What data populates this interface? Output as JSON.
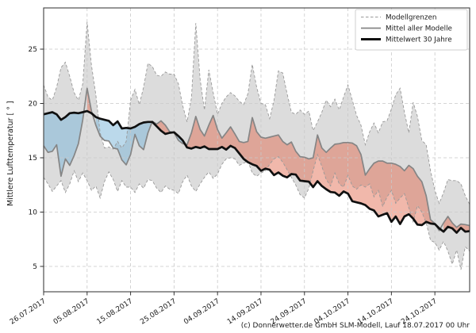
{
  "figure": {
    "footer": "(c) Donnerwetter.de GmbH SLM-Modell, Lauf 18.07.2017 00 Uhr"
  },
  "axes": {
    "y_label": "Mittlere Lufttemperatur [ ° ]",
    "y_ticks": [
      5,
      10,
      15,
      20,
      25
    ],
    "x_tick_days": [
      0,
      10,
      20,
      30,
      40,
      50,
      60,
      70,
      80,
      90
    ],
    "x_tick_labels": [
      "26.07.2017",
      "05.08.2017",
      "15.08.2017",
      "25.08.2017",
      "04.09.2017",
      "14.09.2017",
      "24.09.2017",
      "04.10.2017",
      "14.10.2017",
      "24.10.2017"
    ]
  },
  "legend": {
    "items": [
      {
        "label": "Modellgrenzen",
        "style": "dashed-gray"
      },
      {
        "label": "Mittel aller Modelle",
        "style": "solid-gray"
      },
      {
        "label": "Mittelwert 30 Jahre",
        "style": "solid-black-thick"
      }
    ]
  },
  "colors": {
    "band_fill": "#dcdcdc",
    "bounds_line": "#999999",
    "mean_line": "#858585",
    "climate_line": "#101010",
    "warm_fill": "rgba(224,98,68,0.45)",
    "cool_fill": "rgba(120,180,215,0.5)",
    "grid": "#c9c9c9"
  },
  "chart_data": {
    "type": "line",
    "title": "",
    "xlabel": "",
    "ylabel": "Mittlere Lufttemperatur [ ° ]",
    "x_unit": "Tage ab 26.07.2017 (1 Punkt pro Tag)",
    "x_start_date": "26.07.2017",
    "x_end_date": "01.11.2017",
    "ylim": [
      2.7,
      28.8
    ],
    "grid": true,
    "legend_position": "upper right",
    "fills": [
      {
        "name": "Spannweite aller Modelle (Modellgrenzen)",
        "color": "#dcdcdc"
      },
      {
        "name": "Modellmittel waermer als 30-jaehriges Mittel",
        "color": "rgba(224,98,68,0.45)"
      },
      {
        "name": "Modellmittel kaelter als 30-jaehriges Mittel",
        "color": "rgba(120,180,215,0.5)"
      }
    ],
    "series": [
      {
        "name": "Modellgrenzen (obere Grenze)",
        "style": "dashed",
        "values": [
          21.7,
          20.6,
          20.3,
          21.5,
          23.3,
          23.8,
          22.5,
          21.0,
          20.3,
          21.8,
          27.5,
          23.5,
          20.8,
          17.3,
          15.9,
          16.0,
          15.8,
          16.5,
          15.9,
          16.5,
          20.3,
          21.3,
          19.9,
          21.5,
          23.7,
          23.4,
          22.6,
          22.5,
          22.9,
          22.7,
          22.7,
          21.8,
          19.8,
          18.3,
          20.5,
          27.4,
          22.2,
          19.4,
          23.1,
          21.0,
          19.0,
          20.0,
          20.6,
          21.0,
          20.7,
          20.2,
          19.9,
          20.9,
          23.6,
          21.5,
          20.0,
          19.9,
          18.6,
          20.3,
          23.0,
          22.8,
          20.9,
          19.2,
          19.0,
          19.4,
          19.0,
          19.3,
          17.5,
          18.3,
          19.2,
          20.3,
          19.7,
          20.4,
          19.4,
          20.6,
          21.7,
          20.3,
          18.9,
          18.0,
          16.2,
          17.4,
          18.2,
          17.3,
          18.3,
          18.4,
          19.5,
          20.8,
          21.4,
          19.2,
          17.3,
          20.1,
          18.8,
          16.6,
          16.2,
          13.8,
          12.0,
          10.8,
          11.8,
          13.0,
          12.9,
          12.9,
          12.6,
          11.5,
          10.7
        ]
      },
      {
        "name": "Modellgrenzen (untere Grenze)",
        "style": "dashed",
        "values": [
          13.2,
          12.6,
          11.9,
          12.4,
          12.9,
          11.8,
          12.6,
          13.8,
          12.8,
          13.6,
          12.9,
          12.0,
          12.4,
          11.3,
          12.8,
          13.7,
          13.0,
          11.9,
          12.9,
          12.3,
          12.3,
          11.8,
          12.6,
          12.2,
          13.0,
          12.9,
          12.2,
          11.8,
          12.4,
          12.1,
          12.0,
          11.7,
          12.8,
          13.4,
          12.4,
          11.9,
          12.6,
          13.2,
          13.7,
          13.1,
          13.5,
          14.4,
          14.9,
          15.0,
          14.9,
          14.3,
          14.5,
          14.7,
          13.6,
          13.3,
          13.6,
          13.8,
          14.4,
          14.9,
          15.1,
          14.6,
          13.9,
          13.2,
          12.5,
          11.6,
          11.3,
          12.2,
          13.8,
          15.3,
          14.2,
          13.0,
          12.4,
          13.6,
          12.6,
          12.3,
          13.4,
          12.4,
          12.1,
          12.5,
          12.3,
          12.6,
          11.4,
          12.0,
          10.5,
          11.4,
          12.0,
          10.8,
          11.3,
          11.7,
          10.4,
          9.1,
          10.6,
          10.0,
          9.0,
          7.4,
          7.2,
          6.5,
          7.3,
          6.4,
          5.2,
          6.5,
          4.7,
          6.8,
          6.4
        ]
      },
      {
        "name": "Mittel aller Modelle",
        "style": "solid-gray",
        "values": [
          16.1,
          15.5,
          15.6,
          16.2,
          13.3,
          14.9,
          14.3,
          15.2,
          16.3,
          18.5,
          21.4,
          19.3,
          18.0,
          17.0,
          16.6,
          16.55,
          15.9,
          15.8,
          14.8,
          14.35,
          15.3,
          17.15,
          16.1,
          15.75,
          17.3,
          18.35,
          18.1,
          18.4,
          18.0,
          17.4,
          17.3,
          16.6,
          16.3,
          16.2,
          17.3,
          18.8,
          17.6,
          17.0,
          18.0,
          18.9,
          17.6,
          16.8,
          17.3,
          17.85,
          17.2,
          16.5,
          16.4,
          16.5,
          18.7,
          17.4,
          16.9,
          16.8,
          16.9,
          17.0,
          17.1,
          16.5,
          16.2,
          16.45,
          15.6,
          15.1,
          15.05,
          14.9,
          15.0,
          17.1,
          15.9,
          15.5,
          15.9,
          16.25,
          16.3,
          16.4,
          16.4,
          16.35,
          16.1,
          15.3,
          13.4,
          14.0,
          14.5,
          14.7,
          14.7,
          14.5,
          14.5,
          14.4,
          14.2,
          13.8,
          14.3,
          14.0,
          13.3,
          12.8,
          11.5,
          9.3,
          8.95,
          8.3,
          9.0,
          9.6,
          9.0,
          8.6,
          8.9,
          8.85,
          8.75
        ]
      },
      {
        "name": "Mittelwert 30 Jahre",
        "style": "solid-black-thick",
        "values": [
          19.0,
          19.1,
          19.2,
          19.0,
          18.5,
          18.75,
          19.1,
          19.15,
          19.1,
          19.2,
          19.3,
          19.1,
          18.75,
          18.6,
          18.5,
          18.4,
          18.0,
          18.35,
          17.7,
          17.75,
          17.7,
          17.85,
          18.1,
          18.25,
          18.3,
          18.3,
          17.9,
          17.5,
          17.2,
          17.3,
          17.35,
          17.0,
          16.6,
          15.95,
          15.85,
          16.0,
          15.9,
          16.05,
          15.8,
          15.8,
          15.8,
          16.0,
          15.75,
          16.1,
          15.9,
          15.4,
          14.9,
          14.6,
          14.4,
          14.25,
          13.8,
          14.0,
          13.9,
          13.4,
          13.65,
          13.35,
          13.2,
          13.5,
          13.45,
          12.9,
          12.85,
          12.8,
          12.3,
          12.85,
          12.4,
          12.1,
          11.85,
          11.8,
          11.5,
          11.9,
          11.7,
          11.0,
          10.9,
          10.8,
          10.65,
          10.3,
          10.15,
          9.6,
          9.75,
          9.9,
          9.1,
          9.6,
          8.9,
          9.6,
          9.8,
          9.4,
          8.85,
          8.8,
          9.1,
          8.95,
          8.9,
          8.5,
          8.2,
          8.65,
          8.5,
          8.1,
          8.55,
          8.2,
          8.25
        ]
      }
    ]
  }
}
